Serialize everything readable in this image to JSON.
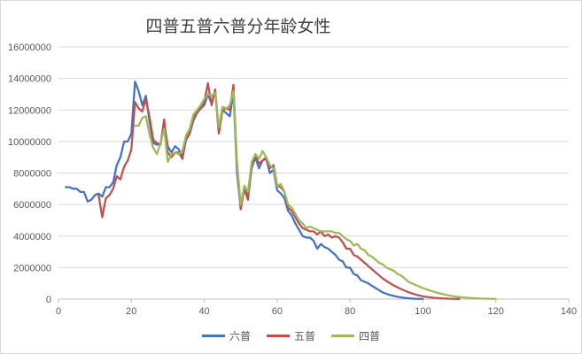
{
  "chart_data": {
    "type": "line",
    "title": "四普五普六普分年龄女性",
    "xlabel": "",
    "ylabel": "",
    "xlim": [
      0,
      140
    ],
    "ylim": [
      0,
      16000000
    ],
    "x_ticks": [
      "0",
      "20",
      "40",
      "60",
      "80",
      "100",
      "120",
      "140"
    ],
    "y_ticks": [
      "0",
      "2000000",
      "4000000",
      "6000000",
      "8000000",
      "10000000",
      "12000000",
      "14000000",
      "16000000"
    ],
    "grid": "horizontal",
    "legend_position": "bottom",
    "series": [
      {
        "name": "六普",
        "color": "#4472c4",
        "points": [
          [
            2,
            7100000
          ],
          [
            3,
            7100000
          ],
          [
            4,
            7000000
          ],
          [
            5,
            7000000
          ],
          [
            6,
            6800000
          ],
          [
            7,
            6800000
          ],
          [
            8,
            6200000
          ],
          [
            9,
            6300000
          ],
          [
            10,
            6600000
          ],
          [
            11,
            6700000
          ],
          [
            12,
            6500000
          ],
          [
            13,
            7100000
          ],
          [
            14,
            7100000
          ],
          [
            15,
            7400000
          ],
          [
            16,
            8500000
          ],
          [
            17,
            9000000
          ],
          [
            18,
            10000000
          ],
          [
            19,
            10000000
          ],
          [
            20,
            10500000
          ],
          [
            21,
            13800000
          ],
          [
            22,
            13200000
          ],
          [
            23,
            12300000
          ],
          [
            24,
            12900000
          ],
          [
            25,
            11200000
          ],
          [
            26,
            9900000
          ],
          [
            27,
            9800000
          ],
          [
            28,
            9800000
          ],
          [
            29,
            11200000
          ],
          [
            30,
            9700000
          ],
          [
            31,
            9300000
          ],
          [
            32,
            9700000
          ],
          [
            33,
            9500000
          ],
          [
            34,
            9000000
          ],
          [
            35,
            10100000
          ],
          [
            36,
            10500000
          ],
          [
            37,
            11300000
          ],
          [
            38,
            11800000
          ],
          [
            39,
            12100000
          ],
          [
            40,
            12300000
          ],
          [
            41,
            13000000
          ],
          [
            42,
            12400000
          ],
          [
            43,
            13200000
          ],
          [
            44,
            10600000
          ],
          [
            45,
            12000000
          ],
          [
            46,
            11800000
          ],
          [
            47,
            11600000
          ],
          [
            48,
            13100000
          ],
          [
            49,
            8000000
          ],
          [
            50,
            5800000
          ],
          [
            51,
            7100000
          ],
          [
            52,
            6500000
          ],
          [
            53,
            8300000
          ],
          [
            54,
            9000000
          ],
          [
            55,
            8300000
          ],
          [
            56,
            8800000
          ],
          [
            57,
            8900000
          ],
          [
            58,
            8000000
          ],
          [
            59,
            8200000
          ],
          [
            60,
            6900000
          ],
          [
            61,
            6700000
          ],
          [
            62,
            6400000
          ],
          [
            63,
            5600000
          ],
          [
            64,
            5300000
          ],
          [
            65,
            4800000
          ],
          [
            66,
            4400000
          ],
          [
            67,
            4000000
          ],
          [
            68,
            3900000
          ],
          [
            69,
            3900000
          ],
          [
            70,
            3700000
          ],
          [
            71,
            3200000
          ],
          [
            72,
            3500000
          ],
          [
            73,
            3300000
          ],
          [
            74,
            3200000
          ],
          [
            75,
            3000000
          ],
          [
            76,
            2800000
          ],
          [
            77,
            2500000
          ],
          [
            78,
            2400000
          ],
          [
            79,
            2000000
          ],
          [
            80,
            2000000
          ],
          [
            81,
            1600000
          ],
          [
            82,
            1500000
          ],
          [
            83,
            1200000
          ],
          [
            84,
            1100000
          ],
          [
            85,
            1000000
          ],
          [
            86,
            850000
          ],
          [
            87,
            700000
          ],
          [
            88,
            560000
          ],
          [
            89,
            420000
          ],
          [
            90,
            330000
          ],
          [
            91,
            260000
          ],
          [
            92,
            200000
          ],
          [
            93,
            150000
          ],
          [
            94,
            110000
          ],
          [
            95,
            80000
          ],
          [
            96,
            55000
          ],
          [
            97,
            35000
          ],
          [
            98,
            22000
          ],
          [
            99,
            14000
          ],
          [
            100,
            9000
          ]
        ]
      },
      {
        "name": "五普",
        "color": "#c0504d",
        "points": [
          [
            11,
            6600000
          ],
          [
            12,
            5200000
          ],
          [
            13,
            6400000
          ],
          [
            14,
            6600000
          ],
          [
            15,
            7000000
          ],
          [
            16,
            7800000
          ],
          [
            17,
            7600000
          ],
          [
            18,
            8400000
          ],
          [
            19,
            8800000
          ],
          [
            20,
            9500000
          ],
          [
            21,
            12500000
          ],
          [
            22,
            12100000
          ],
          [
            23,
            11900000
          ],
          [
            24,
            12700000
          ],
          [
            25,
            11500000
          ],
          [
            26,
            10100000
          ],
          [
            27,
            9900000
          ],
          [
            28,
            9800000
          ],
          [
            29,
            11400000
          ],
          [
            30,
            9300000
          ],
          [
            31,
            9000000
          ],
          [
            32,
            9300000
          ],
          [
            33,
            9300000
          ],
          [
            34,
            8900000
          ],
          [
            35,
            10200000
          ],
          [
            36,
            10500000
          ],
          [
            37,
            11500000
          ],
          [
            38,
            11800000
          ],
          [
            39,
            12100000
          ],
          [
            40,
            12500000
          ],
          [
            41,
            13700000
          ],
          [
            42,
            12300000
          ],
          [
            43,
            13300000
          ],
          [
            44,
            10500000
          ],
          [
            45,
            12000000
          ],
          [
            46,
            12100000
          ],
          [
            47,
            12000000
          ],
          [
            48,
            13600000
          ],
          [
            49,
            8400000
          ],
          [
            50,
            5700000
          ],
          [
            51,
            7000000
          ],
          [
            52,
            6300000
          ],
          [
            53,
            8500000
          ],
          [
            54,
            9100000
          ],
          [
            55,
            8600000
          ],
          [
            56,
            8800000
          ],
          [
            57,
            9000000
          ],
          [
            58,
            8300000
          ],
          [
            59,
            8500000
          ],
          [
            60,
            7200000
          ],
          [
            61,
            7100000
          ],
          [
            62,
            6800000
          ],
          [
            63,
            5800000
          ],
          [
            64,
            5600000
          ],
          [
            65,
            5200000
          ],
          [
            66,
            4800000
          ],
          [
            67,
            4500000
          ],
          [
            68,
            4400000
          ],
          [
            69,
            4300000
          ],
          [
            70,
            4300000
          ],
          [
            71,
            4100000
          ],
          [
            72,
            4300000
          ],
          [
            73,
            4000000
          ],
          [
            74,
            4100000
          ],
          [
            75,
            3900000
          ],
          [
            76,
            4000000
          ],
          [
            77,
            3900000
          ],
          [
            78,
            3600000
          ],
          [
            79,
            3200000
          ],
          [
            80,
            3200000
          ],
          [
            81,
            2800000
          ],
          [
            82,
            2700000
          ],
          [
            83,
            2500000
          ],
          [
            84,
            2300000
          ],
          [
            85,
            2100000
          ],
          [
            86,
            1900000
          ],
          [
            87,
            1700000
          ],
          [
            88,
            1500000
          ],
          [
            89,
            1300000
          ],
          [
            90,
            1150000
          ],
          [
            91,
            1000000
          ],
          [
            92,
            870000
          ],
          [
            93,
            750000
          ],
          [
            94,
            640000
          ],
          [
            95,
            540000
          ],
          [
            96,
            440000
          ],
          [
            97,
            360000
          ],
          [
            98,
            290000
          ],
          [
            99,
            230000
          ],
          [
            100,
            180000
          ],
          [
            101,
            140000
          ],
          [
            102,
            110000
          ],
          [
            103,
            85000
          ],
          [
            104,
            65000
          ],
          [
            105,
            50000
          ],
          [
            106,
            38000
          ],
          [
            107,
            28000
          ],
          [
            108,
            20000
          ],
          [
            109,
            15000
          ],
          [
            110,
            10000
          ]
        ]
      },
      {
        "name": "四普",
        "color": "#9bbb59",
        "points": [
          [
            21,
            11000000
          ],
          [
            22,
            11000000
          ],
          [
            23,
            11500000
          ],
          [
            24,
            11600000
          ],
          [
            25,
            10400000
          ],
          [
            26,
            9600000
          ],
          [
            27,
            9200000
          ],
          [
            28,
            9900000
          ],
          [
            29,
            10800000
          ],
          [
            30,
            8700000
          ],
          [
            31,
            9200000
          ],
          [
            32,
            9300000
          ],
          [
            33,
            9200000
          ],
          [
            34,
            9400000
          ],
          [
            35,
            10400000
          ],
          [
            36,
            10800000
          ],
          [
            37,
            11700000
          ],
          [
            38,
            12000000
          ],
          [
            39,
            12300000
          ],
          [
            40,
            12700000
          ],
          [
            41,
            13000000
          ],
          [
            42,
            12900000
          ],
          [
            43,
            13100000
          ],
          [
            44,
            10900000
          ],
          [
            45,
            12200000
          ],
          [
            46,
            12100000
          ],
          [
            47,
            12300000
          ],
          [
            48,
            13200000
          ],
          [
            49,
            8700000
          ],
          [
            50,
            6000000
          ],
          [
            51,
            7200000
          ],
          [
            52,
            6800000
          ],
          [
            53,
            8700000
          ],
          [
            54,
            9200000
          ],
          [
            55,
            8900000
          ],
          [
            56,
            9400000
          ],
          [
            57,
            9000000
          ],
          [
            58,
            8500000
          ],
          [
            59,
            8300000
          ],
          [
            60,
            7200000
          ],
          [
            61,
            7300000
          ],
          [
            62,
            6800000
          ],
          [
            63,
            6000000
          ],
          [
            64,
            5800000
          ],
          [
            65,
            5400000
          ],
          [
            66,
            5000000
          ],
          [
            67,
            4800000
          ],
          [
            68,
            4500000
          ],
          [
            69,
            4600000
          ],
          [
            70,
            4500000
          ],
          [
            71,
            4400000
          ],
          [
            72,
            4300000
          ],
          [
            73,
            4300000
          ],
          [
            74,
            4300000
          ],
          [
            75,
            4300000
          ],
          [
            76,
            4200000
          ],
          [
            77,
            4200000
          ],
          [
            78,
            4000000
          ],
          [
            79,
            3800000
          ],
          [
            80,
            3700000
          ],
          [
            81,
            3400000
          ],
          [
            82,
            3500000
          ],
          [
            83,
            3200000
          ],
          [
            84,
            3100000
          ],
          [
            85,
            2800000
          ],
          [
            86,
            2700000
          ],
          [
            87,
            2500000
          ],
          [
            88,
            2300000
          ],
          [
            89,
            2200000
          ],
          [
            90,
            2000000
          ],
          [
            91,
            1900000
          ],
          [
            92,
            1800000
          ],
          [
            93,
            1600000
          ],
          [
            94,
            1500000
          ],
          [
            95,
            1300000
          ],
          [
            96,
            1100000
          ],
          [
            97,
            1000000
          ],
          [
            98,
            900000
          ],
          [
            99,
            800000
          ],
          [
            100,
            700000
          ],
          [
            101,
            620000
          ],
          [
            102,
            540000
          ],
          [
            103,
            470000
          ],
          [
            104,
            400000
          ],
          [
            105,
            340000
          ],
          [
            106,
            290000
          ],
          [
            107,
            240000
          ],
          [
            108,
            200000
          ],
          [
            109,
            165000
          ],
          [
            110,
            135000
          ],
          [
            111,
            110000
          ],
          [
            112,
            90000
          ],
          [
            113,
            72000
          ],
          [
            114,
            58000
          ],
          [
            115,
            46000
          ],
          [
            116,
            36000
          ],
          [
            117,
            28000
          ],
          [
            118,
            22000
          ],
          [
            119,
            17000
          ],
          [
            120,
            13000
          ]
        ]
      }
    ]
  }
}
